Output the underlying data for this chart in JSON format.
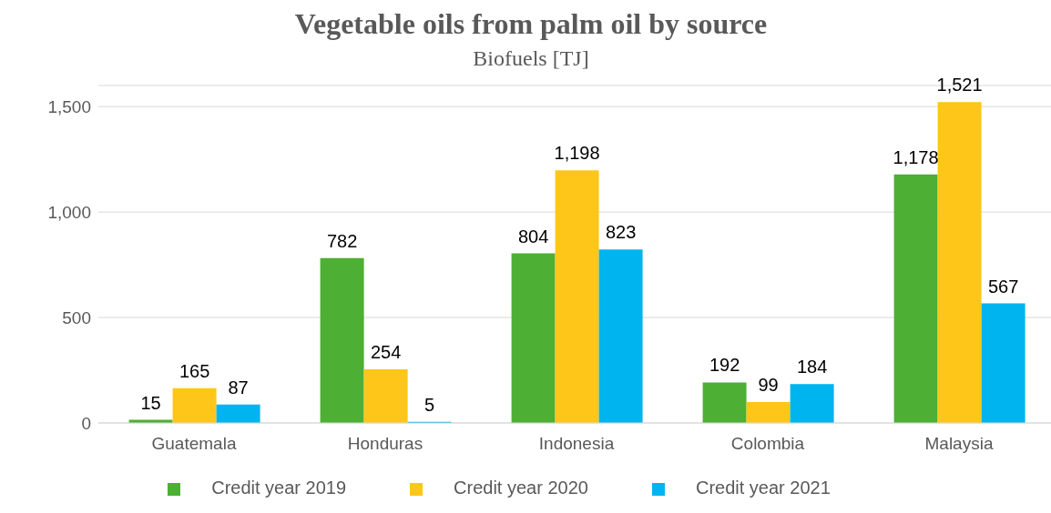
{
  "chart_data": {
    "type": "bar",
    "title": "Vegetable oils from palm oil by source",
    "subtitle": "Biofuels [TJ]",
    "categories": [
      "Guatemala",
      "Honduras",
      "Indonesia",
      "Colombia",
      "Malaysia"
    ],
    "series": [
      {
        "name": "Credit year 2019",
        "color": "#4daf34",
        "values": [
          15,
          782,
          804,
          192,
          1178
        ],
        "value_labels": [
          "15",
          "782",
          "804",
          "192",
          "1,178"
        ]
      },
      {
        "name": "Credit year 2020",
        "color": "#fec619",
        "values": [
          165,
          254,
          1198,
          99,
          1521
        ],
        "value_labels": [
          "165",
          "254",
          "1,198",
          "99",
          "1,521"
        ]
      },
      {
        "name": "Credit year 2021",
        "color": "#00b5ef",
        "values": [
          87,
          5,
          823,
          184,
          567
        ],
        "value_labels": [
          "87",
          "5",
          "823",
          "184",
          "567"
        ]
      }
    ],
    "ylim": [
      0,
      1600
    ],
    "yticks": [
      0,
      500,
      {
        "value": 1000,
        "label": "1,000"
      },
      {
        "value": 1500,
        "label": "1,500"
      }
    ],
    "grid": "y",
    "legend": "bottom"
  }
}
